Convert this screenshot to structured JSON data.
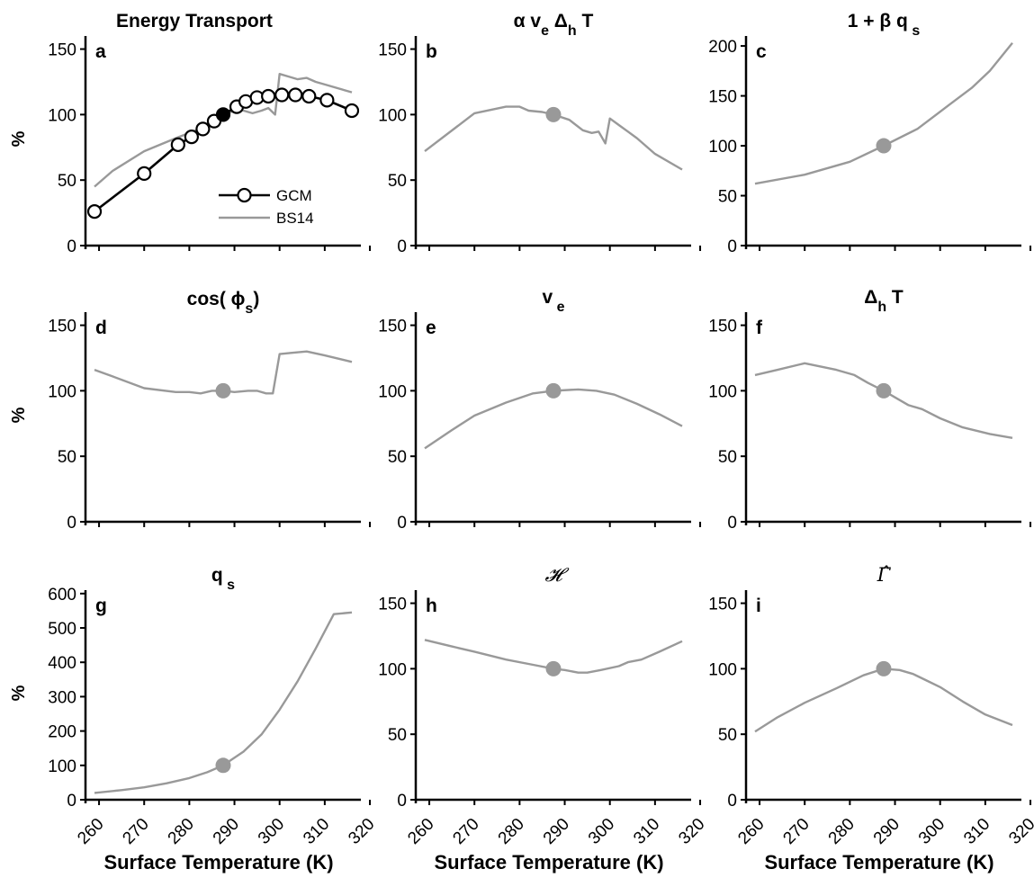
{
  "figure": {
    "x_axis_label": "Surface Temperature (K)",
    "y_axis_label": "%",
    "x_ticks": [
      "260",
      "270",
      "280",
      "290",
      "300",
      "310",
      "320"
    ],
    "legend": [
      {
        "name": "GCM",
        "color": "#000000",
        "marker": "open-circle"
      },
      {
        "name": "BS14",
        "color": "#999999",
        "marker": "none"
      }
    ],
    "colors": {
      "gcm": "#000000",
      "bs14": "#999999",
      "reference_point": "#999999"
    }
  },
  "chart_data": [
    {
      "panel": "a",
      "type": "line",
      "title": "Energy Transport",
      "ylabel": "%",
      "xlabel": "",
      "xlim": [
        257,
        318
      ],
      "ylim": [
        0,
        160
      ],
      "yticks": [
        "0",
        "50",
        "100",
        "150"
      ],
      "reference_point": [
        287.5,
        100
      ],
      "series": [
        {
          "name": "GCM",
          "x": [
            259,
            270,
            277.5,
            280.5,
            283,
            285.5,
            287.5,
            290.5,
            292.5,
            295,
            297.5,
            300.5,
            303.5,
            306.5,
            310.5,
            316
          ],
          "y": [
            26,
            55,
            77,
            83,
            89,
            95,
            100,
            106,
            110,
            113,
            114,
            115,
            115,
            114,
            111,
            103
          ]
        },
        {
          "name": "BS14",
          "x": [
            259,
            263,
            270,
            277,
            283,
            287.5,
            291,
            294,
            296,
            297.5,
            299,
            300,
            302,
            304,
            306,
            308,
            310,
            316
          ],
          "y": [
            45,
            57,
            72,
            82,
            90,
            100,
            104,
            101,
            103,
            105,
            100,
            131,
            129,
            127,
            128,
            125,
            123,
            117
          ]
        }
      ]
    },
    {
      "panel": "b",
      "type": "line",
      "title": "α v_e Δ_h T",
      "ylabel": "",
      "xlabel": "",
      "xlim": [
        257,
        318
      ],
      "ylim": [
        0,
        160
      ],
      "yticks": [
        "0",
        "50",
        "100",
        "150"
      ],
      "reference_point": [
        287.5,
        100
      ],
      "series": [
        {
          "name": "BS14",
          "x": [
            259,
            270,
            277,
            280,
            282,
            285,
            287.5,
            291,
            294,
            296,
            297.5,
            299,
            300,
            302,
            304,
            306,
            310,
            316
          ],
          "y": [
            72,
            101,
            106,
            106,
            103,
            102,
            100,
            96,
            88,
            86,
            87,
            78,
            97,
            92,
            87,
            82,
            70,
            58
          ]
        }
      ]
    },
    {
      "panel": "c",
      "type": "line",
      "title": "1 + β q_s",
      "ylabel": "",
      "xlabel": "",
      "xlim": [
        257,
        318
      ],
      "ylim": [
        0,
        210
      ],
      "yticks": [
        "0",
        "50",
        "100",
        "150",
        "200"
      ],
      "reference_point": [
        287.5,
        100
      ],
      "series": [
        {
          "name": "BS14",
          "x": [
            259,
            270,
            280,
            287.5,
            295,
            302,
            307,
            311,
            316
          ],
          "y": [
            62,
            71,
            84,
            100,
            117,
            141,
            158,
            175,
            203
          ]
        }
      ]
    },
    {
      "panel": "d",
      "type": "line",
      "title": "cos(ϕ_s)",
      "ylabel": "%",
      "xlabel": "",
      "xlim": [
        257,
        318
      ],
      "ylim": [
        0,
        160
      ],
      "yticks": [
        "0",
        "50",
        "100",
        "150"
      ],
      "reference_point": [
        287.5,
        100
      ],
      "series": [
        {
          "name": "BS14",
          "x": [
            259,
            263,
            270,
            277,
            280,
            282.5,
            285,
            287.5,
            290,
            293,
            295,
            297,
            298.5,
            300,
            303,
            306,
            310,
            316
          ],
          "y": [
            116,
            111,
            102,
            99,
            99,
            98,
            100,
            100,
            99,
            100,
            100,
            98,
            98,
            128,
            129,
            130,
            127,
            122
          ]
        }
      ]
    },
    {
      "panel": "e",
      "type": "line",
      "title": "v_e",
      "ylabel": "",
      "xlabel": "",
      "xlim": [
        257,
        318
      ],
      "ylim": [
        0,
        160
      ],
      "yticks": [
        "0",
        "50",
        "100",
        "150"
      ],
      "reference_point": [
        287.5,
        100
      ],
      "series": [
        {
          "name": "BS14",
          "x": [
            259,
            265,
            270,
            277,
            283,
            287.5,
            293,
            297,
            301,
            306,
            311,
            316
          ],
          "y": [
            56,
            70,
            81,
            91,
            98,
            100,
            101,
            100,
            97,
            90,
            82,
            73
          ]
        }
      ]
    },
    {
      "panel": "f",
      "type": "line",
      "title": "Δ_h T",
      "ylabel": "",
      "xlabel": "",
      "xlim": [
        257,
        318
      ],
      "ylim": [
        0,
        160
      ],
      "yticks": [
        "0",
        "50",
        "100",
        "150"
      ],
      "reference_point": [
        287.5,
        100
      ],
      "series": [
        {
          "name": "BS14",
          "x": [
            259,
            264,
            270,
            277,
            281,
            284,
            287.5,
            290,
            293,
            296,
            300,
            305,
            311,
            316
          ],
          "y": [
            112,
            116,
            121,
            116,
            112,
            106,
            100,
            95,
            89,
            86,
            79,
            72,
            67,
            64
          ]
        }
      ]
    },
    {
      "panel": "g",
      "type": "line",
      "title": "q_s",
      "ylabel": "%",
      "xlabel": "Surface Temperature (K)",
      "xlim": [
        257,
        318
      ],
      "ylim": [
        0,
        610
      ],
      "yticks": [
        "0",
        "100",
        "200",
        "300",
        "400",
        "500",
        "600"
      ],
      "reference_point": [
        287.5,
        100
      ],
      "series": [
        {
          "name": "BS14",
          "x": [
            259,
            265,
            270,
            275,
            280,
            284,
            287.5,
            292,
            296,
            300,
            304,
            308,
            312,
            316
          ],
          "y": [
            20,
            28,
            36,
            48,
            63,
            80,
            100,
            140,
            190,
            262,
            345,
            440,
            540,
            545
          ]
        }
      ]
    },
    {
      "panel": "h",
      "type": "line",
      "title": "𝓗",
      "ylabel": "",
      "xlabel": "Surface Temperature (K)",
      "xlim": [
        257,
        318
      ],
      "ylim": [
        0,
        160
      ],
      "yticks": [
        "0",
        "50",
        "100",
        "150"
      ],
      "reference_point": [
        287.5,
        100
      ],
      "series": [
        {
          "name": "BS14",
          "x": [
            259,
            265,
            270,
            277,
            283,
            287.5,
            290,
            293,
            295,
            298,
            302,
            304,
            307,
            311,
            316
          ],
          "y": [
            122,
            117,
            113,
            107,
            103,
            100,
            99,
            97,
            97,
            99,
            102,
            105,
            107,
            113,
            121
          ]
        }
      ]
    },
    {
      "panel": "i",
      "type": "line",
      "title": "Γ̂",
      "ylabel": "",
      "xlabel": "Surface Temperature (K)",
      "xlim": [
        257,
        318
      ],
      "ylim": [
        0,
        160
      ],
      "yticks": [
        "0",
        "50",
        "100",
        "150"
      ],
      "reference_point": [
        287.5,
        100
      ],
      "series": [
        {
          "name": "BS14",
          "x": [
            259,
            264,
            270,
            277,
            283,
            287.5,
            291,
            294,
            297,
            300,
            305,
            310,
            316
          ],
          "y": [
            52,
            63,
            74,
            85,
            95,
            100,
            99,
            96,
            91,
            86,
            75,
            65,
            57
          ]
        }
      ]
    }
  ]
}
